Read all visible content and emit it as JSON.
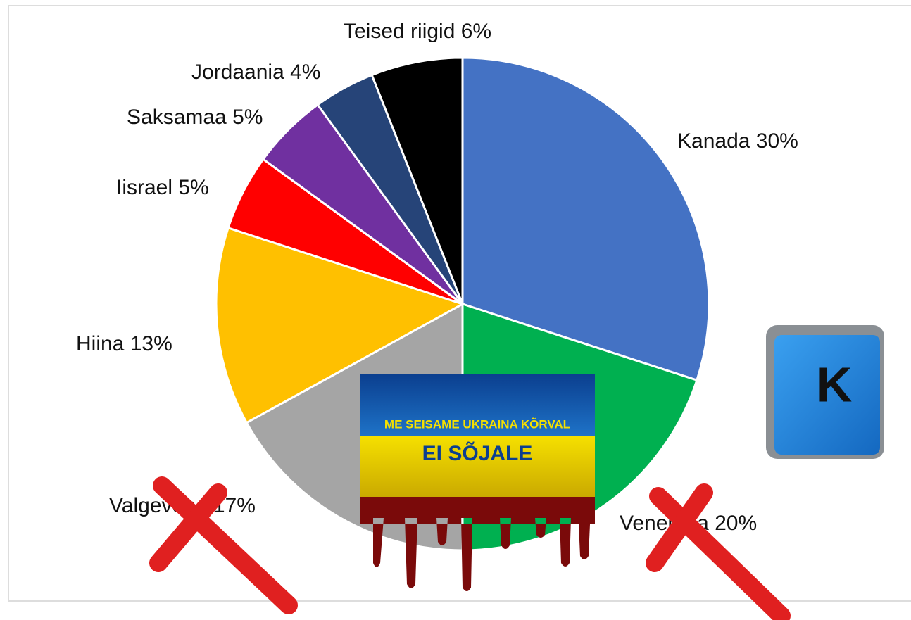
{
  "chart_data": {
    "type": "pie",
    "values": [
      30,
      20,
      17,
      13,
      5,
      5,
      4,
      6
    ],
    "value_labels": [
      "Kanada 30%",
      "Venemaa 20%",
      "Valgevene 17%",
      "Hiina 13%",
      "Iisrael 5%",
      "Saksamaa 5%",
      "Jordaania 4%",
      "Teised riigid 6%"
    ],
    "colors": [
      "#4472c4",
      "#00b050",
      "#a5a5a5",
      "#ffc000",
      "#ff0000",
      "#7030a0",
      "#264478",
      "#000000"
    ],
    "annotations": [
      "ME SEISAME UKRAINA KÕRVAL",
      "EI SÕJALE",
      "K"
    ]
  }
}
